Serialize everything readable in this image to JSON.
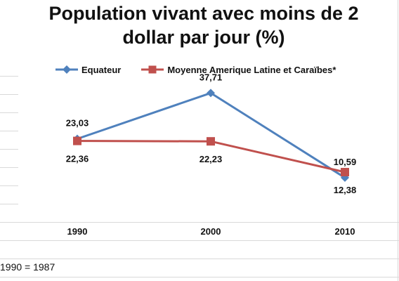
{
  "chart_data": {
    "type": "line",
    "title": "Population vivant avec moins de 2 dollar par jour (%)",
    "title_lines": [
      "Population vivant avec moins de 2",
      "dollar par jour (%)"
    ],
    "categories": [
      "1990",
      "2000",
      "2010"
    ],
    "ylim": [
      0,
      45
    ],
    "grid": false,
    "legend_position": "top",
    "series": [
      {
        "name": "Equateur",
        "color": "#4F81BD",
        "marker": "diamond",
        "values": [
          23.03,
          37.71,
          10.59
        ],
        "labels": [
          "23,03",
          "37,71",
          "10,59"
        ]
      },
      {
        "name": "Moyenne Amerique Latine et Caraïbes*",
        "color": "#C0504D",
        "marker": "square",
        "values": [
          22.36,
          22.23,
          12.38
        ],
        "labels": [
          "22,36",
          "22,23",
          "12,38"
        ]
      }
    ]
  },
  "footnote": "1990 = 1987"
}
